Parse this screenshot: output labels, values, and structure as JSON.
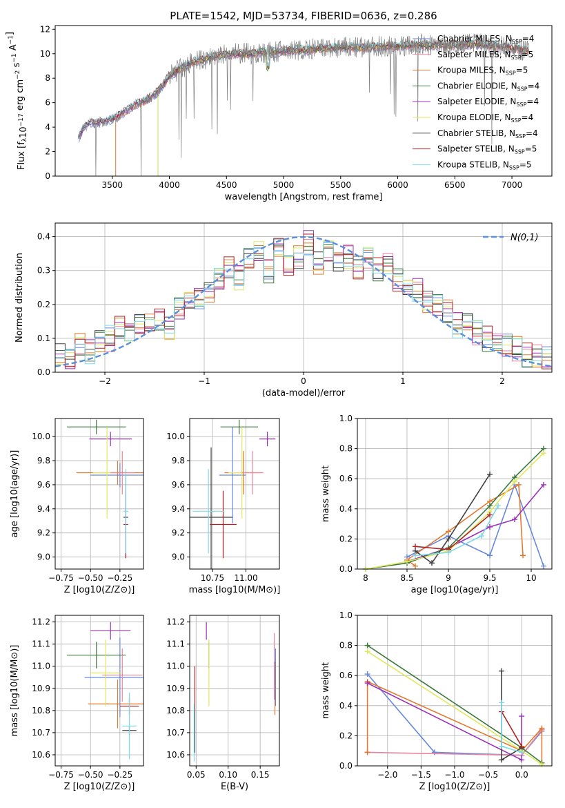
{
  "figure_title": "PLATE=1542, MJD=53734, FIBERID=0636, z=0.286",
  "series_colors": [
    "#7f7f7f",
    "#4a4a4a",
    "#e3a000",
    "#3c8a3c",
    "#9b30b8",
    "#e8e550",
    "#404040",
    "#b22222",
    "#6fd6e8"
  ],
  "chart_data": [
    {
      "id": "spectrum",
      "type": "line",
      "title": "PLATE=1542, MJD=53734, FIBERID=0636, z=0.286",
      "xlabel": "wavelength [Angstrom, rest frame]",
      "ylabel": "Flux [f_λ10^-17 erg cm^-2 s^-1 A^-1]",
      "xlim": [
        3000,
        7350
      ],
      "ylim": [
        0,
        12.3
      ],
      "xticks": [
        3500,
        4000,
        4500,
        5000,
        5500,
        6000,
        6500,
        7000
      ],
      "yticks": [
        0,
        2,
        4,
        6,
        8,
        10,
        12
      ],
      "grid": false,
      "legend_position": "upper right",
      "observed": {
        "x": [
          3200,
          3250,
          3300,
          3400,
          3500,
          3600,
          3700,
          3800,
          3850,
          3900,
          3950,
          4000,
          4100,
          4200,
          4300,
          4400,
          4500,
          4600,
          4700,
          4800,
          4900,
          5000,
          5100,
          5200,
          5300,
          5400,
          5500,
          5600,
          5700,
          5800,
          5900,
          6000,
          6100,
          6200,
          6300,
          6400,
          6500,
          6600,
          6700,
          6800,
          6900,
          7000,
          7100,
          7150
        ],
        "y": [
          3.0,
          4.0,
          4.3,
          4.4,
          4.6,
          5.2,
          5.8,
          6.2,
          6.5,
          6.9,
          7.5,
          8.2,
          8.8,
          9.3,
          9.5,
          9.8,
          9.9,
          10.0,
          10.0,
          10.1,
          10.1,
          10.2,
          10.3,
          10.3,
          10.4,
          10.4,
          10.5,
          10.5,
          10.5,
          10.6,
          10.6,
          10.6,
          10.7,
          10.7,
          10.7,
          10.7,
          10.7,
          10.8,
          10.8,
          10.7,
          10.6,
          10.5,
          10.3,
          10.2
        ]
      },
      "series": [
        {
          "name": "Chabrier MILES, N_SSP=4",
          "color": "#6688dd"
        },
        {
          "name": "Salpeter MILES, N_SSP=5",
          "color": "#e8859e"
        },
        {
          "name": "Kroupa MILES, N_SSP=5",
          "color": "#e07a30"
        },
        {
          "name": "Chabrier ELODIE, N_SSP=4",
          "color": "#3c7a3c"
        },
        {
          "name": "Salpeter ELODIE, N_SSP=4",
          "color": "#9b30b8"
        },
        {
          "name": "Kroupa ELODIE, N_SSP=4",
          "color": "#e0e860"
        },
        {
          "name": "Chabrier STELIB, N_SSP=4",
          "color": "#404040"
        },
        {
          "name": "Salpeter STELIB, N_SSP=5",
          "color": "#b22222"
        },
        {
          "name": "Kroupa STELIB, N_SSP=5",
          "color": "#7fd9e8"
        }
      ],
      "legend_labels": [
        {
          "main": "Chabrier MILES, N",
          "sub": "SSP",
          "tail": "=4"
        },
        {
          "main": "Salpeter MILES, N",
          "sub": "SSP",
          "tail": "=5"
        },
        {
          "main": "Kroupa MILES, N",
          "sub": "SSP",
          "tail": "=5"
        },
        {
          "main": "Chabrier ELODIE, N",
          "sub": "SSP",
          "tail": "=4"
        },
        {
          "main": "Salpeter ELODIE, N",
          "sub": "SSP",
          "tail": "=4"
        },
        {
          "main": "Kroupa ELODIE, N",
          "sub": "SSP",
          "tail": "=4"
        },
        {
          "main": "Chabrier STELIB, N",
          "sub": "SSP",
          "tail": "=4"
        },
        {
          "main": "Salpeter STELIB, N",
          "sub": "SSP",
          "tail": "=5"
        },
        {
          "main": "Kroupa STELIB, N",
          "sub": "SSP",
          "tail": "=5"
        }
      ]
    },
    {
      "id": "residuals",
      "type": "line",
      "xlabel": "(data-model)/error",
      "ylabel": "Normed distribution",
      "xlim": [
        -2.5,
        2.5
      ],
      "ylim": [
        0,
        0.44
      ],
      "xticks": [
        -2,
        -1,
        0,
        1,
        2
      ],
      "yticks": [
        0,
        0.1,
        0.2,
        0.3,
        0.4
      ],
      "grid": true,
      "legend": "N(0,1)",
      "legend_position": "upper right",
      "reference_curve": "normal(0,1)",
      "bin_width": 0.1,
      "hist_centers": [
        -2.45,
        -2.35,
        -2.25,
        -2.15,
        -2.05,
        -1.95,
        -1.85,
        -1.75,
        -1.65,
        -1.55,
        -1.45,
        -1.35,
        -1.25,
        -1.15,
        -1.05,
        -0.95,
        -0.85,
        -0.75,
        -0.65,
        -0.55,
        -0.45,
        -0.35,
        -0.25,
        -0.15,
        -0.05,
        0.05,
        0.15,
        0.25,
        0.35,
        0.45,
        0.55,
        0.65,
        0.75,
        0.85,
        0.95,
        1.05,
        1.15,
        1.25,
        1.35,
        1.45,
        1.55,
        1.65,
        1.75,
        1.85,
        1.95,
        2.05,
        2.15,
        2.25,
        2.35,
        2.45
      ],
      "hist_values": [
        0.05,
        0.04,
        0.08,
        0.06,
        0.09,
        0.1,
        0.13,
        0.12,
        0.14,
        0.14,
        0.16,
        0.13,
        0.19,
        0.21,
        0.22,
        0.24,
        0.27,
        0.31,
        0.28,
        0.33,
        0.35,
        0.3,
        0.37,
        0.32,
        0.34,
        0.38,
        0.32,
        0.36,
        0.33,
        0.34,
        0.31,
        0.34,
        0.3,
        0.32,
        0.27,
        0.25,
        0.24,
        0.21,
        0.2,
        0.18,
        0.14,
        0.15,
        0.12,
        0.1,
        0.09,
        0.08,
        0.07,
        0.05,
        0.05,
        0.04
      ]
    },
    {
      "id": "age_vs_Z",
      "type": "scatter",
      "xlabel": "Z [log10(Z/Z⊙)]",
      "ylabel": "age  [log10(age/yr)]",
      "xlim": [
        -0.8,
        -0.05
      ],
      "ylim": [
        8.9,
        10.15
      ],
      "xticks": [
        -0.75,
        -0.5,
        -0.25
      ],
      "xticklabels": [
        "−0.75",
        "−0.50",
        "−0.25"
      ],
      "yticks": [
        9.0,
        9.2,
        9.4,
        9.6,
        9.8,
        10.0
      ],
      "grid": true,
      "points": [
        {
          "x": -0.27,
          "y": 9.7,
          "xerr": 0.35,
          "yerr": 0.1,
          "color": "#e07a30"
        },
        {
          "x": -0.25,
          "y": 9.68,
          "xerr": 0.25,
          "yerr": 0.1,
          "color": "#6688dd"
        },
        {
          "x": -0.45,
          "y": 10.08,
          "xerr": 0.25,
          "yerr": 0.06,
          "color": "#3c7a3c"
        },
        {
          "x": -0.33,
          "y": 9.98,
          "xerr": 0.18,
          "yerr": 0.06,
          "color": "#9b30b8"
        },
        {
          "x": -0.36,
          "y": 9.7,
          "xerr": 0.12,
          "yerr": 0.38,
          "color": "#e0e860"
        },
        {
          "x": -0.2,
          "y": 9.33,
          "xerr": 0.02,
          "yerr": 0.34,
          "color": "#404040"
        },
        {
          "x": -0.2,
          "y": 9.27,
          "xerr": 0.02,
          "yerr": 0.28,
          "color": "#b22222"
        },
        {
          "x": -0.2,
          "y": 9.38,
          "xerr": 0.02,
          "yerr": 0.35,
          "color": "#7fd9e8"
        },
        {
          "x": -0.23,
          "y": 9.7,
          "xerr": 0.1,
          "yerr": 0.18,
          "color": "#e8859e"
        }
      ]
    },
    {
      "id": "age_vs_mass",
      "type": "scatter",
      "xlabel": "mass [log10(M/M⊙)]",
      "ylabel": "",
      "xlim": [
        10.58,
        11.25
      ],
      "ylim": [
        8.9,
        10.15
      ],
      "xticks": [
        10.75,
        11.0
      ],
      "xticklabels": [
        "10.75",
        "11.00"
      ],
      "yticks": [
        9.0,
        9.2,
        9.4,
        9.6,
        9.8,
        10.0
      ],
      "grid": true,
      "points": [
        {
          "x": 10.98,
          "y": 9.7,
          "xerr": 0.14,
          "yerr": 0.18,
          "color": "#e07a30"
        },
        {
          "x": 10.9,
          "y": 9.68,
          "xerr": 0.1,
          "yerr": 0.4,
          "color": "#6688dd"
        },
        {
          "x": 10.95,
          "y": 10.08,
          "xerr": 0.14,
          "yerr": 0.06,
          "color": "#3c7a3c"
        },
        {
          "x": 11.16,
          "y": 9.98,
          "xerr": 0.06,
          "yerr": 0.06,
          "color": "#9b30b8"
        },
        {
          "x": 10.97,
          "y": 9.7,
          "xerr": 0.1,
          "yerr": 0.38,
          "color": "#e0e860"
        },
        {
          "x": 10.74,
          "y": 9.33,
          "xerr": 0.16,
          "yerr": 0.58,
          "color": "#404040"
        },
        {
          "x": 10.83,
          "y": 9.27,
          "xerr": 0.1,
          "yerr": 0.28,
          "color": "#b22222"
        },
        {
          "x": 10.72,
          "y": 9.38,
          "xerr": 0.12,
          "yerr": 0.35,
          "color": "#7fd9e8"
        },
        {
          "x": 11.05,
          "y": 9.7,
          "xerr": 0.08,
          "yerr": 0.18,
          "color": "#e8859e"
        }
      ]
    },
    {
      "id": "massweight_vs_age",
      "type": "line",
      "xlabel": "age  [log10(age/yr)]",
      "ylabel": "mass weight",
      "xlim": [
        7.9,
        10.25
      ],
      "ylim": [
        0,
        1.0
      ],
      "xticks": [
        8.0,
        8.5,
        9.0,
        9.5,
        10.0
      ],
      "yticks": [
        0.0,
        0.2,
        0.4,
        0.6,
        0.8,
        1.0
      ],
      "grid": true,
      "lines": [
        {
          "color": "#6688dd",
          "x": [
            8.5,
            9.0,
            9.5,
            9.8,
            10.15
          ],
          "y": [
            0.08,
            0.22,
            0.09,
            0.56,
            0.02
          ]
        },
        {
          "color": "#e07a30",
          "x": [
            8.6,
            8.5,
            9.0,
            9.5,
            9.85,
            9.9
          ],
          "y": [
            0.02,
            0.06,
            0.25,
            0.45,
            0.56,
            0.09
          ]
        },
        {
          "color": "#9b30b8",
          "x": [
            8.5,
            9.0,
            9.5,
            9.8,
            10.15
          ],
          "y": [
            0.05,
            0.14,
            0.28,
            0.33,
            0.56
          ]
        },
        {
          "color": "#3c7a3c",
          "x": [
            8.0,
            8.5,
            9.0,
            9.5,
            9.8,
            10.15
          ],
          "y": [
            0.0,
            0.04,
            0.14,
            0.42,
            0.61,
            0.8
          ]
        },
        {
          "color": "#e0e860",
          "x": [
            8.0,
            8.5,
            9.0,
            9.5,
            9.8,
            10.15
          ],
          "y": [
            0.0,
            0.05,
            0.12,
            0.38,
            0.58,
            0.77
          ]
        },
        {
          "color": "#404040",
          "x": [
            8.6,
            8.8,
            9.0,
            9.5
          ],
          "y": [
            0.12,
            0.04,
            0.2,
            0.63
          ]
        },
        {
          "color": "#b22222",
          "x": [
            8.6,
            9.0,
            9.5
          ],
          "y": [
            0.15,
            0.13,
            0.36
          ]
        },
        {
          "color": "#7fd9e8",
          "x": [
            8.6,
            9.0,
            9.4,
            9.6
          ],
          "y": [
            0.09,
            0.11,
            0.22,
            0.42
          ]
        }
      ]
    },
    {
      "id": "mass_vs_Z",
      "type": "scatter",
      "xlabel": "Z [log10(Z/Z⊙)]",
      "ylabel": "mass [log10(M/M⊙)]",
      "xlim": [
        -0.8,
        -0.05
      ],
      "ylim": [
        10.55,
        11.23
      ],
      "xticks": [
        -0.75,
        -0.5,
        -0.25
      ],
      "xticklabels": [
        "−0.75",
        "−0.50",
        "−0.25"
      ],
      "yticks": [
        10.6,
        10.7,
        10.8,
        10.9,
        11.0,
        11.1,
        11.2
      ],
      "grid": true,
      "points": [
        {
          "x": -0.27,
          "y": 10.83,
          "xerr": 0.25,
          "yerr": 0.11,
          "color": "#e07a30"
        },
        {
          "x": -0.25,
          "y": 10.95,
          "xerr": 0.3,
          "yerr": 0.18,
          "color": "#6688dd"
        },
        {
          "x": -0.45,
          "y": 11.05,
          "xerr": 0.25,
          "yerr": 0.06,
          "color": "#3c7a3c"
        },
        {
          "x": -0.33,
          "y": 11.16,
          "xerr": 0.17,
          "yerr": 0.04,
          "color": "#9b30b8"
        },
        {
          "x": -0.37,
          "y": 10.97,
          "xerr": 0.13,
          "yerr": 0.15,
          "color": "#e0e860"
        },
        {
          "x": -0.17,
          "y": 10.71,
          "xerr": 0.06,
          "yerr": 0.02,
          "color": "#404040"
        },
        {
          "x": -0.17,
          "y": 10.82,
          "xerr": 0.08,
          "yerr": 0.04,
          "color": "#b22222"
        },
        {
          "x": -0.17,
          "y": 10.73,
          "xerr": 0.06,
          "yerr": 0.15,
          "color": "#7fd9e8"
        },
        {
          "x": -0.23,
          "y": 10.96,
          "xerr": 0.17,
          "yerr": 0.12,
          "color": "#e8859e"
        }
      ]
    },
    {
      "id": "mass_vs_ebv",
      "type": "scatter",
      "xlabel": "E(B-V)",
      "ylabel": "",
      "xlim": [
        0.04,
        0.18
      ],
      "ylim": [
        10.55,
        11.23
      ],
      "xticks": [
        0.05,
        0.1,
        0.15
      ],
      "xticklabels": [
        "0.05",
        "0.10",
        "0.15"
      ],
      "yticks": [
        10.6,
        10.7,
        10.8,
        10.9,
        11.0,
        11.1,
        11.2
      ],
      "grid": true,
      "points": [
        {
          "x": 0.173,
          "y": 10.9,
          "xerr": 0.0,
          "yerr": 0.12,
          "color": "#e07a30"
        },
        {
          "x": 0.174,
          "y": 10.95,
          "xerr": 0.0,
          "yerr": 0.13,
          "color": "#6688dd"
        },
        {
          "x": 0.07,
          "y": 11.05,
          "xerr": 0.0,
          "yerr": 0.06,
          "color": "#3c7a3c"
        },
        {
          "x": 0.066,
          "y": 11.16,
          "xerr": 0.0,
          "yerr": 0.04,
          "color": "#9b30b8"
        },
        {
          "x": 0.07,
          "y": 10.97,
          "xerr": 0.0,
          "yerr": 0.15,
          "color": "#e0e860"
        },
        {
          "x": 0.048,
          "y": 10.71,
          "xerr": 0.0,
          "yerr": 0.1,
          "color": "#404040"
        },
        {
          "x": 0.048,
          "y": 10.9,
          "xerr": 0.0,
          "yerr": 0.1,
          "color": "#b22222"
        },
        {
          "x": 0.047,
          "y": 10.7,
          "xerr": 0.0,
          "yerr": 0.13,
          "color": "#7fd9e8"
        },
        {
          "x": 0.172,
          "y": 11.0,
          "xerr": 0.0,
          "yerr": 0.15,
          "color": "#e8859e"
        }
      ]
    },
    {
      "id": "massweight_vs_Z",
      "type": "line",
      "xlabel": "Z [log10(Z/Z⊙)]",
      "ylabel": "mass weight",
      "xlim": [
        -2.45,
        0.45
      ],
      "ylim": [
        0,
        1.0
      ],
      "xticks": [
        -2.0,
        -1.5,
        -1.0,
        -0.5,
        0.0
      ],
      "xticklabels": [
        "−2.0",
        "−1.5",
        "−1.0",
        "−0.5",
        "0.0"
      ],
      "yticks": [
        0.0,
        0.2,
        0.4,
        0.6,
        0.8,
        1.0
      ],
      "grid": true,
      "lines": [
        {
          "color": "#6688dd",
          "x": [
            -2.3,
            -1.3,
            0.0,
            0.3
          ],
          "y": [
            0.61,
            0.09,
            0.07,
            0.23
          ]
        },
        {
          "color": "#e8859e",
          "x": [
            -2.3,
            0.0,
            0.3
          ],
          "y": [
            0.09,
            0.07,
            0.24
          ]
        },
        {
          "color": "#e07a30",
          "x": [
            -2.3,
            -2.3,
            0.0,
            0.3,
            0.3
          ],
          "y": [
            0.09,
            0.56,
            0.1,
            0.25,
            0.02
          ]
        },
        {
          "color": "#9b30b8",
          "x": [
            -2.3,
            0.0,
            0.0
          ],
          "y": [
            0.55,
            0.04,
            0.33
          ]
        },
        {
          "color": "#3c7a3c",
          "x": [
            -2.3,
            0.0,
            0.3
          ],
          "y": [
            0.8,
            0.12,
            0.02
          ]
        },
        {
          "color": "#e0e860",
          "x": [
            -2.3,
            0.0,
            0.3
          ],
          "y": [
            0.76,
            0.1,
            0.01
          ]
        },
        {
          "color": "#404040",
          "x": [
            -0.3,
            -0.3,
            0.0
          ],
          "y": [
            0.63,
            0.04,
            0.12
          ]
        },
        {
          "color": "#b22222",
          "x": [
            -0.3,
            0.0
          ],
          "y": [
            0.36,
            0.13
          ]
        },
        {
          "color": "#7fd9e8",
          "x": [
            -0.3,
            -0.3,
            0.0
          ],
          "y": [
            0.42,
            0.13,
            0.09
          ]
        }
      ]
    }
  ]
}
